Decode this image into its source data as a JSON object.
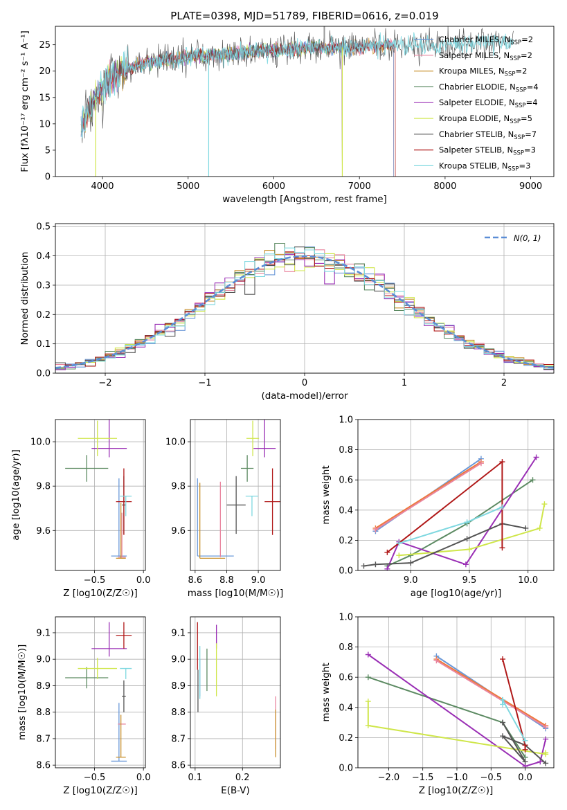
{
  "colors": {
    "Chabrier MILES": "#6a98d8",
    "Salpeter MILES": "#e9859f",
    "Kroupa MILES": "#c8902c",
    "Chabrier ELODIE": "#5c8a62",
    "Salpeter ELODIE": "#9a2fb5",
    "Kroupa ELODIE": "#cfe64a",
    "Chabrier STELIB": "#555555",
    "Salpeter STELIB": "#b01818",
    "Kroupa STELIB": "#7fd8e0",
    "gaussian": "#5b8dd6",
    "orange_mass": "#ee7a3a"
  },
  "chart_data": [
    {
      "id": "spectrum",
      "type": "line",
      "title": "PLATE=0398, MJD=51789, FIBERID=0616, z=0.019",
      "xlabel": "wavelength [Angstrom, rest frame]",
      "ylabel": "Flux [fλ10⁻¹⁷ erg cm⁻² s⁻¹ A⁻¹]",
      "xlim": [
        3450,
        9270
      ],
      "ylim": [
        0,
        28.5
      ],
      "xticks": [
        4000,
        5000,
        6000,
        7000,
        8000,
        9000
      ],
      "yticks": [
        0,
        5,
        10,
        15,
        20,
        25
      ],
      "legend_position": "top-right",
      "legend": [
        "Chabrier MILES, N_SSP=2",
        "Salpeter MILES, N_SSP=2",
        "Kroupa MILES, N_SSP=2",
        "Chabrier ELODIE, N_SSP=4",
        "Salpeter ELODIE, N_SSP=4",
        "Kroupa ELODIE, N_SSP=5",
        "Chabrier STELIB, N_SSP=7",
        "Salpeter STELIB, N_SSP=3",
        "Kroupa STELIB, N_SSP=3"
      ],
      "legend_rendered": [
        "Chabrier MILES, NSSP=2",
        "Salpeter MILES, NSSP=2",
        "Kroupa MILES, NSSP=2",
        "Chabrier ELODIE, NSSP=4",
        "Salpeter ELODIE, NSSP=4",
        "Kroupa ELODIE, NSSP=5",
        "Chabrier STELIB, NSSP=7",
        "Salpeter STELIB, NSSP=3",
        "Kroupa STELIB, NSSP=3"
      ],
      "continuum": {
        "x": [
          3750,
          3850,
          3950,
          4050,
          4150,
          4300,
          4500,
          4700,
          4900,
          5100,
          5300,
          5600,
          6000,
          6500,
          7000,
          7300,
          7500,
          8000,
          8500,
          8800
        ],
        "y": [
          9,
          13,
          16,
          18,
          19.5,
          20.5,
          21.5,
          22,
          22.5,
          23,
          23,
          23.5,
          24,
          24.5,
          24.5,
          25,
          25,
          25,
          25.3,
          25.5
        ]
      },
      "model_extent": {
        "Chabrier MILES": [
          3750,
          7400
        ],
        "Salpeter MILES": [
          3750,
          7400
        ],
        "Kroupa MILES": [
          3750,
          7400
        ],
        "Chabrier ELODIE": [
          3750,
          6800
        ],
        "Salpeter ELODIE": [
          3750,
          6800
        ],
        "Kroupa ELODIE": [
          3750,
          6800
        ],
        "Chabrier STELIB": [
          3750,
          8800
        ],
        "Salpeter STELIB": [
          3750,
          7420
        ],
        "Kroupa STELIB": [
          3750,
          8800
        ]
      }
    },
    {
      "id": "residuals",
      "type": "bar",
      "xlabel": "(data-model)/error",
      "ylabel": "Normed distribution",
      "xlim": [
        -2.5,
        2.5
      ],
      "ylim": [
        0,
        0.51
      ],
      "xticks": [
        -2,
        -1,
        0,
        1,
        2
      ],
      "yticks": [
        0.0,
        0.1,
        0.2,
        0.3,
        0.4,
        0.5
      ],
      "bin_width": 0.1,
      "legend_position": "top-right",
      "legend": [
        "N(0, 1)"
      ]
    },
    {
      "id": "age_vs_Z",
      "type": "scatter",
      "xlabel": "Z [log10(Z/Z☉)]",
      "ylabel": "age  [log10(age/yr)]",
      "xlim": [
        -0.9,
        0.02
      ],
      "ylim": [
        9.42,
        10.1
      ],
      "xticks": [
        -0.5,
        0.0
      ],
      "yticks": [
        9.6,
        9.8,
        10.0
      ],
      "errorbars": [
        {
          "series": "Chabrier MILES",
          "x": -0.25,
          "y": 9.485,
          "xerr": 0.08,
          "yerr": [
            0.0,
            0.35
          ]
        },
        {
          "series": "Salpeter MILES",
          "x": -0.22,
          "y": 9.48,
          "xerr": 0.04,
          "yerr": [
            0.0,
            0.2
          ]
        },
        {
          "series": "Kroupa MILES",
          "x": -0.23,
          "y": 9.475,
          "xerr": 0.05,
          "yerr": [
            0.0,
            0.25
          ]
        },
        {
          "series": "Chabrier ELODIE",
          "x": -0.58,
          "y": 9.88,
          "xerr": 0.22,
          "yerr": 0.06
        },
        {
          "series": "Salpeter ELODIE",
          "x": -0.35,
          "y": 9.97,
          "xerr": 0.18,
          "yerr": [
            0.04,
            0.13
          ]
        },
        {
          "series": "Kroupa ELODIE",
          "x": -0.47,
          "y": 10.015,
          "xerr": 0.2,
          "yerr": 0.08
        },
        {
          "series": "Chabrier STELIB",
          "x": -0.2,
          "y": 9.715,
          "xerr": 0.02,
          "yerr": 0.13
        },
        {
          "series": "Salpeter STELIB",
          "x": -0.2,
          "y": 9.73,
          "xerr": 0.08,
          "yerr": 0.15
        },
        {
          "series": "Kroupa STELIB",
          "x": -0.18,
          "y": 9.755,
          "xerr": 0.06,
          "yerr": [
            0.09,
            0.0
          ]
        }
      ]
    },
    {
      "id": "age_vs_mass",
      "type": "scatter",
      "xlabel": "mass [log10(M/M☉)]",
      "ylabel": "",
      "xlim": [
        8.57,
        9.14
      ],
      "ylim": [
        9.42,
        10.1
      ],
      "xticks": [
        8.6,
        8.8,
        9.0
      ],
      "yticks": [
        9.6,
        9.8,
        10.0
      ],
      "errorbars": [
        {
          "series": "Chabrier MILES",
          "x": 8.615,
          "y": 9.485,
          "xerr": [
            0.0,
            0.23
          ],
          "yerr": [
            0.0,
            0.35
          ]
        },
        {
          "series": "Salpeter MILES",
          "x": 8.76,
          "y": 9.48,
          "xerr": 0.0,
          "yerr": [
            0.0,
            0.34
          ]
        },
        {
          "series": "Kroupa MILES",
          "x": 8.63,
          "y": 9.475,
          "xerr": [
            0.0,
            0.16
          ],
          "yerr": [
            0.0,
            0.34
          ]
        },
        {
          "series": "Chabrier ELODIE",
          "x": 8.93,
          "y": 9.88,
          "xerr": 0.04,
          "yerr": 0.06
        },
        {
          "series": "Salpeter ELODIE",
          "x": 9.04,
          "y": 9.97,
          "xerr": 0.07,
          "yerr": [
            0.04,
            0.13
          ]
        },
        {
          "series": "Kroupa ELODIE",
          "x": 8.965,
          "y": 10.015,
          "xerr": 0.04,
          "yerr": 0.08
        },
        {
          "series": "Chabrier STELIB",
          "x": 8.86,
          "y": 9.715,
          "xerr": 0.06,
          "yerr": 0.13
        },
        {
          "series": "Salpeter STELIB",
          "x": 9.09,
          "y": 9.73,
          "xerr": 0.05,
          "yerr": 0.15
        },
        {
          "series": "Kroupa STELIB",
          "x": 8.96,
          "y": 9.755,
          "xerr": 0.04,
          "yerr": [
            0.09,
            0.0
          ]
        }
      ]
    },
    {
      "id": "massweight_vs_age",
      "type": "line",
      "xlabel": "age  [log10(age/yr)]",
      "ylabel": "mass weight",
      "xlim": [
        8.55,
        10.22
      ],
      "ylim": [
        0,
        1
      ],
      "xticks": [
        9.0,
        9.5,
        10.0
      ],
      "yticks": [
        0.0,
        0.2,
        0.4,
        0.6,
        0.8,
        1.0
      ],
      "series": [
        {
          "name": "Chabrier MILES",
          "x": [
            8.7,
            9.6
          ],
          "y": [
            0.26,
            0.74
          ]
        },
        {
          "name": "Kroupa MILES",
          "x": [
            8.7,
            9.6
          ],
          "y": [
            0.28,
            0.72
          ]
        },
        {
          "name": "Salpeter MILES",
          "x": [
            8.7,
            9.6
          ],
          "y": [
            0.27,
            0.71
          ]
        },
        {
          "name": "Chabrier ELODIE",
          "x": [
            8.8,
            9.0,
            9.48,
            10.04
          ],
          "y": [
            0.03,
            0.1,
            0.31,
            0.6
          ]
        },
        {
          "name": "Salpeter ELODIE",
          "x": [
            8.8,
            8.9,
            9.47,
            10.07
          ],
          "y": [
            0.01,
            0.19,
            0.04,
            0.75
          ]
        },
        {
          "name": "Kroupa ELODIE",
          "x": [
            8.9,
            9.5,
            10.1,
            10.14
          ],
          "y": [
            0.1,
            0.14,
            0.28,
            0.44
          ]
        },
        {
          "name": "Chabrier STELIB",
          "x": [
            8.6,
            8.7,
            9.0,
            9.48,
            9.78,
            9.98
          ],
          "y": [
            0.03,
            0.04,
            0.05,
            0.21,
            0.31,
            0.28
          ]
        },
        {
          "name": "Salpeter STELIB",
          "x": [
            8.8,
            9.78,
            9.78
          ],
          "y": [
            0.12,
            0.72,
            0.15
          ]
        },
        {
          "name": "Kroupa STELIB",
          "x": [
            8.9,
            9.48,
            9.78
          ],
          "y": [
            0.18,
            0.32,
            0.42
          ]
        }
      ]
    },
    {
      "id": "mass_vs_Z",
      "type": "scatter",
      "xlabel": "Z [log10(Z/Z☉)]",
      "ylabel": "mass [log10(M/M☉)]",
      "xlim": [
        -0.9,
        0.02
      ],
      "ylim": [
        8.59,
        9.16
      ],
      "xticks": [
        -0.5,
        0.0
      ],
      "yticks": [
        8.6,
        8.7,
        8.8,
        8.9,
        9.0,
        9.1
      ],
      "errorbars": [
        {
          "series": "Chabrier MILES",
          "x": -0.25,
          "y": 8.615,
          "xerr": 0.08,
          "yerr": [
            0.0,
            0.22
          ]
        },
        {
          "series": "Salpeter MILES",
          "x": -0.22,
          "y": 8.755,
          "xerr": 0.04,
          "yerr": 0.0
        },
        {
          "series": "Kroupa MILES",
          "x": -0.23,
          "y": 8.63,
          "xerr": 0.05,
          "yerr": [
            0.0,
            0.16
          ]
        },
        {
          "series": "Chabrier ELODIE",
          "x": -0.58,
          "y": 8.93,
          "xerr": 0.22,
          "yerr": 0.04
        },
        {
          "series": "Salpeter ELODIE",
          "x": -0.35,
          "y": 9.04,
          "xerr": 0.18,
          "yerr": [
            0.03,
            0.1
          ]
        },
        {
          "series": "Kroupa ELODIE",
          "x": -0.47,
          "y": 8.965,
          "xerr": 0.2,
          "yerr": 0.04
        },
        {
          "series": "Chabrier STELIB",
          "x": -0.2,
          "y": 8.86,
          "xerr": 0.02,
          "yerr": 0.06
        },
        {
          "series": "Salpeter STELIB",
          "x": -0.2,
          "y": 9.09,
          "xerr": 0.08,
          "yerr": [
            0.05,
            0.05
          ]
        },
        {
          "series": "Kroupa STELIB",
          "x": -0.18,
          "y": 8.965,
          "xerr": 0.06,
          "yerr": [
            0.04,
            0.0
          ]
        }
      ]
    },
    {
      "id": "mass_vs_EBV",
      "type": "scatter",
      "xlabel": "E(B-V)",
      "ylabel": "",
      "xlim": [
        0.09,
        0.28
      ],
      "ylim": [
        8.59,
        9.16
      ],
      "xticks": [
        0.1,
        0.2
      ],
      "yticks": [
        8.6,
        8.7,
        8.8,
        8.9,
        9.0,
        9.1
      ],
      "errorbars": [
        {
          "series": "Chabrier MILES",
          "x": 0.11,
          "y": 8.93,
          "xerr": 0.0,
          "yerr": 0.07
        },
        {
          "series": "Salpeter MILES",
          "x": 0.27,
          "y": 8.76,
          "xerr": 0.0,
          "yerr": 0.1
        },
        {
          "series": "Kroupa MILES",
          "x": 0.27,
          "y": 8.72,
          "xerr": 0.0,
          "yerr": 0.09
        },
        {
          "series": "Chabrier ELODIE",
          "x": 0.125,
          "y": 8.96,
          "xerr": 0.0,
          "yerr": 0.08
        },
        {
          "series": "Salpeter ELODIE",
          "x": 0.145,
          "y": 9.04,
          "xerr": 0.0,
          "yerr": [
            0.0,
            0.09
          ]
        },
        {
          "series": "Kroupa ELODIE",
          "x": 0.145,
          "y": 8.96,
          "xerr": 0.0,
          "yerr": 0.1
        },
        {
          "series": "Chabrier STELIB",
          "x": 0.106,
          "y": 8.88,
          "xerr": 0.0,
          "yerr": 0.08
        },
        {
          "series": "Salpeter STELIB",
          "x": 0.105,
          "y": 9.05,
          "xerr": 0.0,
          "yerr": 0.09
        },
        {
          "series": "Kroupa STELIB",
          "x": 0.11,
          "y": 8.95,
          "xerr": 0.0,
          "yerr": 0.1
        }
      ]
    },
    {
      "id": "massweight_vs_Z",
      "type": "line",
      "xlabel": "Z [log10(Z/Z☉)]",
      "ylabel": "mass weight",
      "xlim": [
        -2.45,
        0.42
      ],
      "ylim": [
        0,
        1
      ],
      "xticks": [
        -2.0,
        -1.5,
        -1.0,
        -0.5,
        0.0
      ],
      "yticks": [
        0.0,
        0.2,
        0.4,
        0.6,
        0.8,
        1.0
      ],
      "series": [
        {
          "name": "Chabrier MILES",
          "x": [
            -1.3,
            0.3
          ],
          "y": [
            0.74,
            0.26
          ]
        },
        {
          "name": "Kroupa MILES",
          "x": [
            -1.3,
            0.3
          ],
          "y": [
            0.72,
            0.28
          ]
        },
        {
          "name": "Salpeter MILES",
          "x": [
            -1.3,
            0.3
          ],
          "y": [
            0.71,
            0.27
          ]
        },
        {
          "name": "Chabrier ELODIE",
          "x": [
            -2.3,
            -0.33,
            0.0
          ],
          "y": [
            0.6,
            0.3,
            0.07
          ]
        },
        {
          "name": "Salpeter ELODIE",
          "x": [
            -2.3,
            0.0,
            0.22,
            0.3
          ],
          "y": [
            0.75,
            0.01,
            0.04,
            0.19
          ]
        },
        {
          "name": "Kroupa ELODIE",
          "x": [
            -2.3,
            -2.3,
            0.3,
            0.3
          ],
          "y": [
            0.44,
            0.28,
            0.09,
            0.1
          ]
        },
        {
          "name": "Chabrier STELIB",
          "x": [
            -0.33,
            0.0,
            -0.33,
            0.0,
            0.3
          ],
          "y": [
            0.3,
            0.04,
            0.21,
            0.15,
            0.03
          ]
        },
        {
          "name": "Salpeter STELIB",
          "x": [
            -0.33,
            0.0,
            0.0
          ],
          "y": [
            0.72,
            0.15,
            0.12
          ]
        },
        {
          "name": "Kroupa STELIB",
          "x": [
            -0.33,
            -0.33,
            0.0
          ],
          "y": [
            0.42,
            0.45,
            0.18
          ]
        }
      ]
    }
  ],
  "residuals_legend_label": "N(0, 1)"
}
